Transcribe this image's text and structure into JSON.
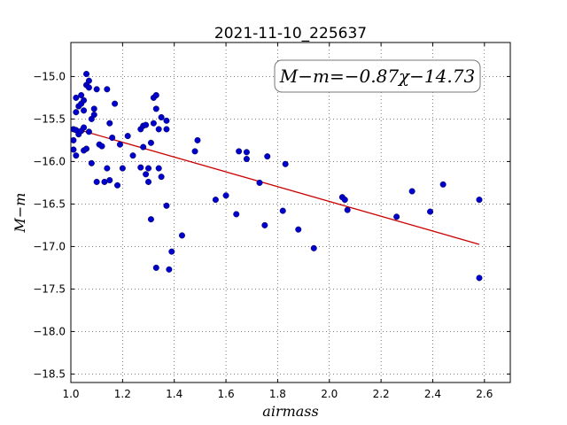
{
  "chart_data": {
    "type": "scatter",
    "title": "2021-11-10_225637",
    "xlabel": "airmass",
    "ylabel": "M−m",
    "xlim": [
      1.0,
      2.7
    ],
    "ylim": [
      -18.6,
      -14.6
    ],
    "y_inverted": true,
    "grid": true,
    "x_ticks": [
      "1.0",
      "1.2",
      "1.4",
      "1.6",
      "1.8",
      "2.0",
      "2.2",
      "2.4",
      "2.6"
    ],
    "y_ticks": [
      "−15.0",
      "−15.5",
      "−16.0",
      "−16.5",
      "−17.0",
      "−17.5",
      "−18.0",
      "−18.5"
    ],
    "annotation": "M−m=−0.87χ−14.73",
    "fit": {
      "slope": -0.87,
      "intercept": -14.73,
      "x_range": [
        1.02,
        2.58
      ],
      "color": "#cc0000"
    },
    "point_color": "#0000cc",
    "points": [
      [
        1.01,
        -15.62
      ],
      [
        1.01,
        -15.86
      ],
      [
        1.01,
        -15.75
      ],
      [
        1.02,
        -15.25
      ],
      [
        1.02,
        -15.42
      ],
      [
        1.02,
        -15.63
      ],
      [
        1.02,
        -15.93
      ],
      [
        1.03,
        -15.35
      ],
      [
        1.03,
        -15.68
      ],
      [
        1.04,
        -15.22
      ],
      [
        1.04,
        -15.32
      ],
      [
        1.04,
        -15.64
      ],
      [
        1.05,
        -15.28
      ],
      [
        1.05,
        -15.4
      ],
      [
        1.05,
        -15.87
      ],
      [
        1.05,
        -15.6
      ],
      [
        1.06,
        -14.97
      ],
      [
        1.06,
        -15.1
      ],
      [
        1.06,
        -15.85
      ],
      [
        1.07,
        -15.05
      ],
      [
        1.07,
        -15.13
      ],
      [
        1.07,
        -15.65
      ],
      [
        1.08,
        -15.5
      ],
      [
        1.08,
        -16.02
      ],
      [
        1.09,
        -15.38
      ],
      [
        1.09,
        -15.45
      ],
      [
        1.1,
        -15.15
      ],
      [
        1.1,
        -16.24
      ],
      [
        1.11,
        -15.8
      ],
      [
        1.12,
        -15.82
      ],
      [
        1.13,
        -16.24
      ],
      [
        1.14,
        -16.08
      ],
      [
        1.14,
        -15.15
      ],
      [
        1.15,
        -15.55
      ],
      [
        1.15,
        -16.22
      ],
      [
        1.16,
        -15.72
      ],
      [
        1.17,
        -15.32
      ],
      [
        1.18,
        -16.28
      ],
      [
        1.19,
        -15.8
      ],
      [
        1.2,
        -16.08
      ],
      [
        1.22,
        -15.7
      ],
      [
        1.24,
        -15.93
      ],
      [
        1.27,
        -16.07
      ],
      [
        1.27,
        -15.62
      ],
      [
        1.28,
        -15.83
      ],
      [
        1.28,
        -15.58
      ],
      [
        1.29,
        -16.15
      ],
      [
        1.29,
        -15.57
      ],
      [
        1.3,
        -16.24
      ],
      [
        1.3,
        -16.08
      ],
      [
        1.31,
        -15.78
      ],
      [
        1.31,
        -16.68
      ],
      [
        1.32,
        -15.25
      ],
      [
        1.32,
        -15.55
      ],
      [
        1.33,
        -15.22
      ],
      [
        1.33,
        -15.38
      ],
      [
        1.33,
        -17.25
      ],
      [
        1.34,
        -16.08
      ],
      [
        1.34,
        -15.62
      ],
      [
        1.35,
        -15.48
      ],
      [
        1.35,
        -16.18
      ],
      [
        1.37,
        -16.52
      ],
      [
        1.37,
        -15.52
      ],
      [
        1.37,
        -15.62
      ],
      [
        1.38,
        -17.27
      ],
      [
        1.39,
        -17.06
      ],
      [
        1.43,
        -16.87
      ],
      [
        1.48,
        -15.88
      ],
      [
        1.49,
        -15.75
      ],
      [
        1.56,
        -16.45
      ],
      [
        1.6,
        -16.4
      ],
      [
        1.64,
        -16.62
      ],
      [
        1.65,
        -15.88
      ],
      [
        1.68,
        -15.97
      ],
      [
        1.68,
        -15.89
      ],
      [
        1.73,
        -16.25
      ],
      [
        1.75,
        -16.75
      ],
      [
        1.76,
        -15.94
      ],
      [
        1.82,
        -16.58
      ],
      [
        1.83,
        -16.03
      ],
      [
        1.88,
        -16.8
      ],
      [
        1.94,
        -17.02
      ],
      [
        2.05,
        -16.42
      ],
      [
        2.06,
        -16.45
      ],
      [
        2.07,
        -16.57
      ],
      [
        2.26,
        -16.65
      ],
      [
        2.32,
        -16.35
      ],
      [
        2.39,
        -16.59
      ],
      [
        2.44,
        -16.27
      ],
      [
        2.58,
        -16.45
      ],
      [
        2.58,
        -17.37
      ]
    ]
  }
}
